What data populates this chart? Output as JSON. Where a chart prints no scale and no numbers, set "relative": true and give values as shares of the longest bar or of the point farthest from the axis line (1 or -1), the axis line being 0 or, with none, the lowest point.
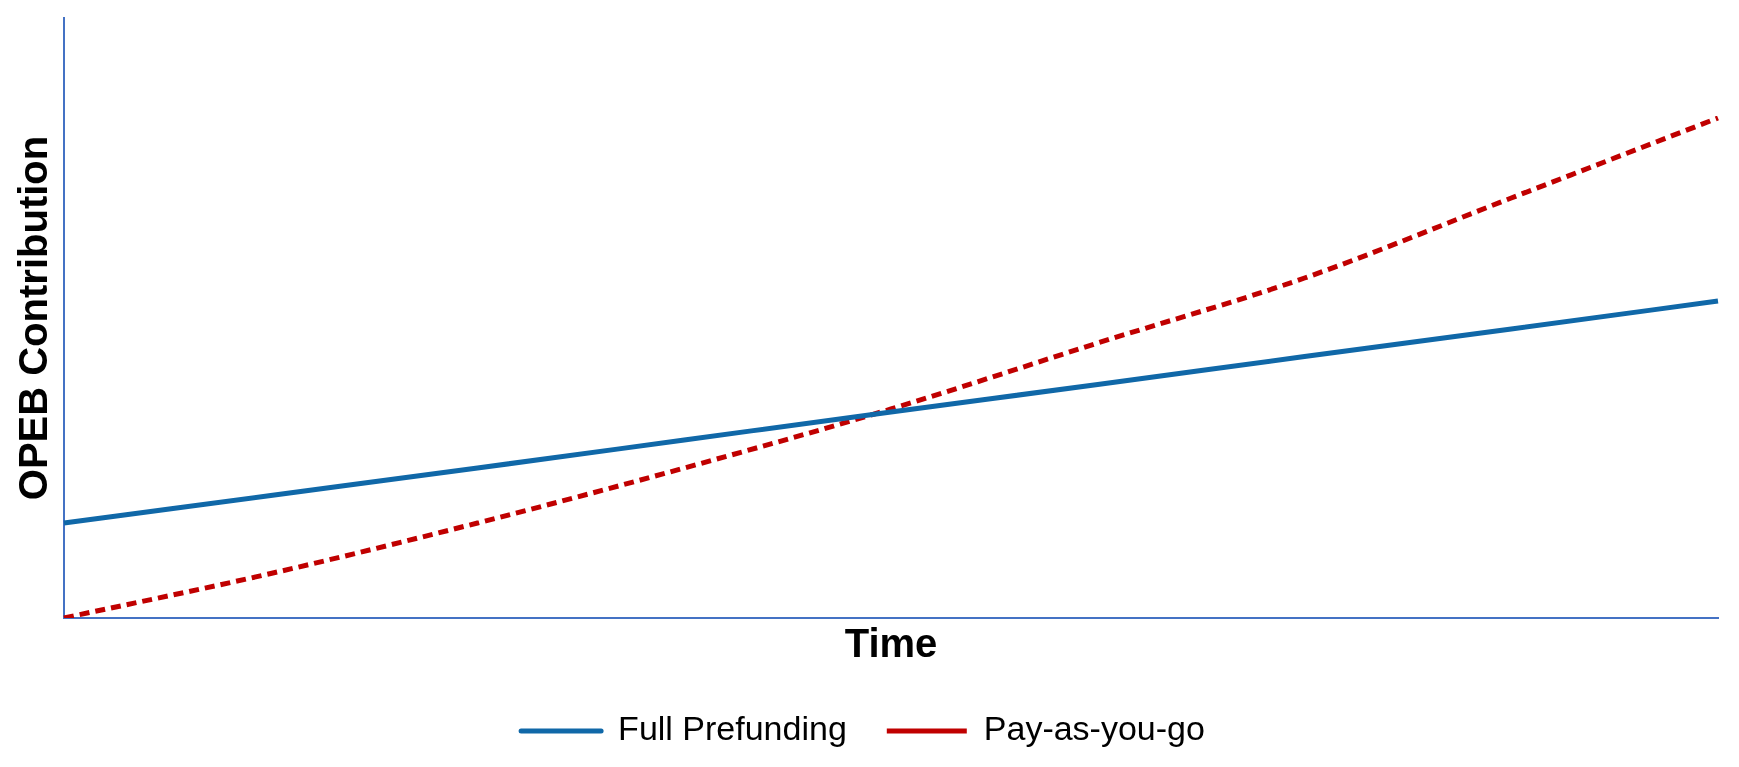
{
  "chart_data": {
    "type": "line",
    "relative": true,
    "xlabel": "Time",
    "ylabel": "OPEB Contribution",
    "categories": [
      null,
      null,
      null,
      null,
      null,
      null,
      null,
      null,
      null
    ],
    "legend": "bottom",
    "grid": false,
    "marker": "none",
    "series": [
      {
        "name": "Full Prefunding",
        "color": "#1068a8",
        "line_style": "solid",
        "values": [
          0.19,
          0.245,
          0.3,
          0.356,
          0.412,
          0.467,
          0.523,
          0.578,
          0.634
        ]
      },
      {
        "name": "Pay-as-you-go",
        "color": "#c00000",
        "line_style": "dashed",
        "values": [
          0,
          0.089,
          0.19,
          0.3,
          0.418,
          0.55,
          0.68,
          0.84,
          1
        ]
      }
    ]
  }
}
